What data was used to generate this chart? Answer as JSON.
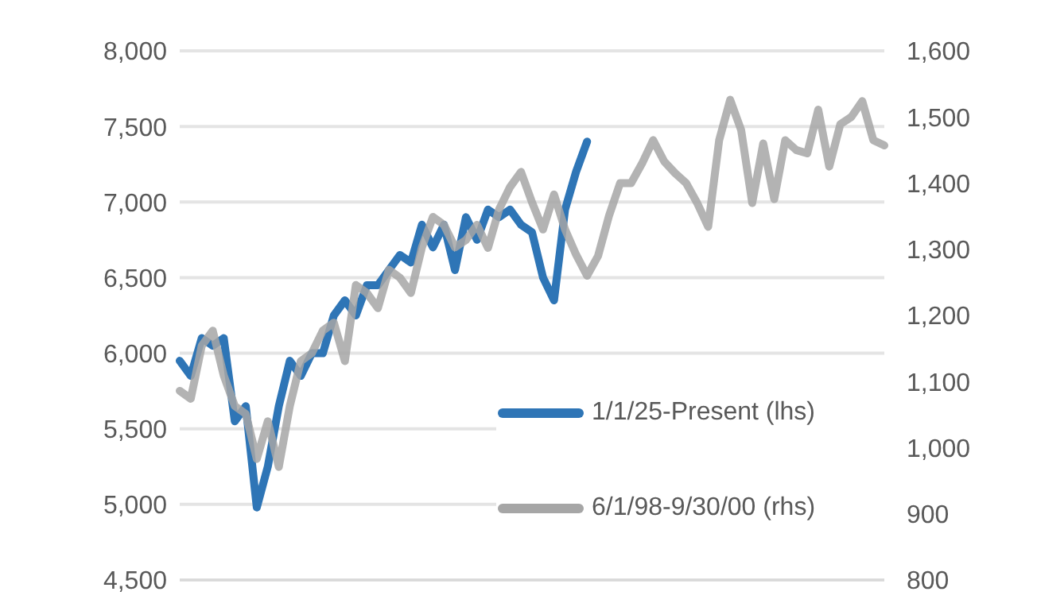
{
  "chart_data": {
    "type": "line",
    "categories": [
      null,
      null,
      null,
      null,
      null,
      null,
      null,
      null,
      null,
      null,
      null,
      null,
      null,
      null,
      null,
      null,
      null,
      null,
      null,
      null,
      null,
      null,
      null,
      null,
      null,
      null,
      null,
      null,
      null,
      null,
      null,
      null,
      null,
      null,
      null,
      null,
      null,
      null,
      null,
      null,
      null,
      null,
      null,
      null,
      null,
      null,
      null,
      null,
      null,
      null,
      null,
      null,
      null,
      null,
      null,
      null,
      null,
      null,
      null,
      null,
      null,
      null,
      null,
      null,
      null
    ],
    "ylim": [
      4500,
      8000
    ],
    "yticks": [
      {
        "value": 4500,
        "label": "4,500"
      },
      {
        "value": 5000,
        "label": "5,000"
      },
      {
        "value": 5500,
        "label": "5,500"
      },
      {
        "value": 6000,
        "label": "6,000"
      },
      {
        "value": 6500,
        "label": "6,500"
      },
      {
        "value": 7000,
        "label": "7,000"
      },
      {
        "value": 7500,
        "label": "7,500"
      },
      {
        "value": 8000,
        "label": "8,000"
      }
    ],
    "y2lim": [
      800,
      1600
    ],
    "y2ticks": [
      800,
      900,
      {
        "value": 1000,
        "label": "1,000"
      },
      {
        "value": 1100,
        "label": "1,100"
      },
      {
        "value": 1200,
        "label": "1,200"
      },
      {
        "value": 1300,
        "label": "1,300"
      },
      {
        "value": 1400,
        "label": "1,400"
      },
      {
        "value": 1500,
        "label": "1,500"
      },
      {
        "value": 1600,
        "label": "1,600"
      }
    ],
    "tick_labels": "y",
    "grid": "y",
    "legend": "bottom right",
    "marker": "none",
    "line_style": "solid",
    "series": [
      {
        "name": "1/1/25-Present (lhs)",
        "color": "#2e75b6",
        "values": [
          5950,
          5850,
          6100,
          6050,
          6100,
          5550,
          5650,
          4980,
          5250,
          5650,
          5950,
          5850,
          6000,
          6000,
          6250,
          6350,
          6250,
          6450,
          6450,
          6550,
          6650,
          6600,
          6850,
          6700,
          6850,
          6550,
          6900,
          6750,
          6950,
          6900,
          6950,
          6850,
          6800,
          6500,
          6350,
          6950,
          7200,
          7400,
          null,
          null,
          null,
          null,
          null,
          null,
          null,
          null,
          null,
          null,
          null,
          null,
          null,
          null,
          null,
          null,
          null,
          null,
          null,
          null,
          null,
          null,
          null,
          null,
          null,
          null,
          null
        ]
      },
      {
        "name": "6/1/98-9/30/00 (rhs)",
        "color": "#a6a6a6",
        "axis": "y2",
        "values": [
          1086,
          1074,
          1154,
          1177,
          1109,
          1063,
          1051,
          983,
          1040,
          971,
          1063,
          1131,
          1143,
          1177,
          1189,
          1131,
          1246,
          1234,
          1211,
          1269,
          1257,
          1234,
          1303,
          1349,
          1337,
          1303,
          1314,
          1337,
          1302,
          1360,
          1394,
          1417,
          1371,
          1330,
          1383,
          1330,
          1292,
          1260,
          1290,
          1351,
          1400,
          1400,
          1430,
          1465,
          1433,
          1415,
          1400,
          1370,
          1334,
          1465,
          1526,
          1480,
          1370,
          1460,
          1376,
          1465,
          1450,
          1445,
          1511,
          1425,
          1489,
          1500,
          1524,
          1465,
          1457
        ]
      }
    ]
  }
}
